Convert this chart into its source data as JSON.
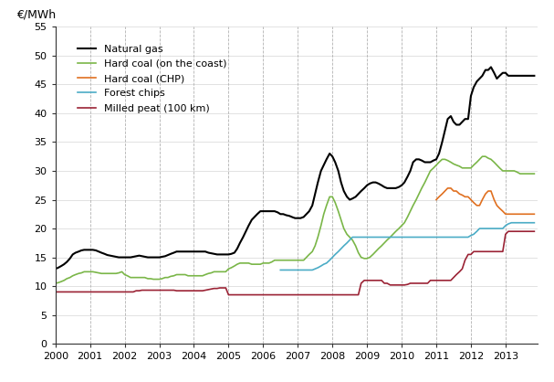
{
  "title": "",
  "ylabel": "€/MWh",
  "ylim": [
    0,
    55
  ],
  "yticks": [
    0,
    5,
    10,
    15,
    20,
    25,
    30,
    35,
    40,
    45,
    50,
    55
  ],
  "xlim_start": 2000.0,
  "xlim_end": 2013.92,
  "xtick_years": [
    2000,
    2001,
    2002,
    2003,
    2004,
    2005,
    2006,
    2007,
    2008,
    2009,
    2010,
    2011,
    2012,
    2013
  ],
  "background_color": "#ffffff",
  "grid_color": "#aaaaaa",
  "series": {
    "natural_gas": {
      "label": "Natural gas",
      "color": "#000000",
      "linewidth": 1.5
    },
    "hard_coal_coast": {
      "label": "Hard coal (on the coast)",
      "color": "#7ab648",
      "linewidth": 1.2
    },
    "hard_coal_chp": {
      "label": "Hard coal (CHP)",
      "color": "#e07020",
      "linewidth": 1.2
    },
    "forest_chips": {
      "label": "Forest chips",
      "color": "#4bacc6",
      "linewidth": 1.2
    },
    "milled_peat": {
      "label": "Milled peat (100 km)",
      "color": "#9b2335",
      "linewidth": 1.2
    }
  },
  "natural_gas_x": [
    2000.0,
    2000.08,
    2000.17,
    2000.25,
    2000.33,
    2000.42,
    2000.5,
    2000.58,
    2000.67,
    2000.75,
    2000.83,
    2000.92,
    2001.0,
    2001.08,
    2001.17,
    2001.25,
    2001.33,
    2001.42,
    2001.5,
    2001.58,
    2001.67,
    2001.75,
    2001.83,
    2001.92,
    2002.0,
    2002.08,
    2002.17,
    2002.25,
    2002.33,
    2002.42,
    2002.5,
    2002.58,
    2002.67,
    2002.75,
    2002.83,
    2002.92,
    2003.0,
    2003.08,
    2003.17,
    2003.25,
    2003.33,
    2003.42,
    2003.5,
    2003.58,
    2003.67,
    2003.75,
    2003.83,
    2003.92,
    2004.0,
    2004.08,
    2004.17,
    2004.25,
    2004.33,
    2004.42,
    2004.5,
    2004.58,
    2004.67,
    2004.75,
    2004.83,
    2004.92,
    2005.0,
    2005.08,
    2005.17,
    2005.25,
    2005.33,
    2005.42,
    2005.5,
    2005.58,
    2005.67,
    2005.75,
    2005.83,
    2005.92,
    2006.0,
    2006.08,
    2006.17,
    2006.25,
    2006.33,
    2006.42,
    2006.5,
    2006.58,
    2006.67,
    2006.75,
    2006.83,
    2006.92,
    2007.0,
    2007.08,
    2007.17,
    2007.25,
    2007.33,
    2007.42,
    2007.5,
    2007.58,
    2007.67,
    2007.75,
    2007.83,
    2007.92,
    2008.0,
    2008.08,
    2008.17,
    2008.25,
    2008.33,
    2008.42,
    2008.5,
    2008.58,
    2008.67,
    2008.75,
    2008.83,
    2008.92,
    2009.0,
    2009.08,
    2009.17,
    2009.25,
    2009.33,
    2009.42,
    2009.5,
    2009.58,
    2009.67,
    2009.75,
    2009.83,
    2009.92,
    2010.0,
    2010.08,
    2010.17,
    2010.25,
    2010.33,
    2010.42,
    2010.5,
    2010.58,
    2010.67,
    2010.75,
    2010.83,
    2010.92,
    2011.0,
    2011.08,
    2011.17,
    2011.25,
    2011.33,
    2011.42,
    2011.5,
    2011.58,
    2011.67,
    2011.75,
    2011.83,
    2011.92,
    2012.0,
    2012.08,
    2012.17,
    2012.25,
    2012.33,
    2012.42,
    2012.5,
    2012.58,
    2012.67,
    2012.75,
    2012.83,
    2012.92,
    2013.0,
    2013.08,
    2013.17,
    2013.25,
    2013.33,
    2013.42,
    2013.5,
    2013.58,
    2013.67,
    2013.75,
    2013.83
  ],
  "natural_gas_y": [
    13.0,
    13.2,
    13.5,
    13.8,
    14.2,
    14.8,
    15.5,
    15.8,
    16.0,
    16.2,
    16.3,
    16.3,
    16.3,
    16.3,
    16.2,
    16.0,
    15.8,
    15.6,
    15.4,
    15.3,
    15.2,
    15.1,
    15.0,
    15.0,
    15.0,
    15.0,
    15.0,
    15.1,
    15.2,
    15.3,
    15.2,
    15.1,
    15.0,
    15.0,
    15.0,
    15.0,
    15.0,
    15.1,
    15.2,
    15.4,
    15.6,
    15.8,
    16.0,
    16.0,
    16.0,
    16.0,
    16.0,
    16.0,
    16.0,
    16.0,
    16.0,
    16.0,
    16.0,
    15.8,
    15.7,
    15.6,
    15.5,
    15.5,
    15.5,
    15.5,
    15.5,
    15.6,
    15.8,
    16.5,
    17.5,
    18.5,
    19.5,
    20.5,
    21.5,
    22.0,
    22.5,
    23.0,
    23.0,
    23.0,
    23.0,
    23.0,
    23.0,
    22.8,
    22.5,
    22.5,
    22.3,
    22.2,
    22.0,
    21.8,
    21.8,
    21.8,
    22.0,
    22.5,
    23.0,
    24.0,
    26.0,
    28.0,
    30.0,
    31.0,
    32.0,
    33.0,
    32.5,
    31.5,
    30.0,
    28.0,
    26.5,
    25.5,
    25.0,
    25.2,
    25.5,
    26.0,
    26.5,
    27.0,
    27.5,
    27.8,
    28.0,
    28.0,
    27.8,
    27.5,
    27.2,
    27.0,
    27.0,
    27.0,
    27.0,
    27.2,
    27.5,
    28.0,
    29.0,
    30.0,
    31.5,
    32.0,
    32.0,
    31.8,
    31.5,
    31.5,
    31.5,
    31.8,
    32.0,
    33.0,
    35.0,
    37.0,
    39.0,
    39.5,
    38.5,
    38.0,
    38.0,
    38.5,
    39.0,
    39.0,
    43.0,
    44.5,
    45.5,
    46.0,
    46.5,
    47.5,
    47.5,
    48.0,
    47.0,
    46.0,
    46.5,
    47.0,
    47.0,
    46.5,
    46.5,
    46.5,
    46.5,
    46.5,
    46.5,
    46.5,
    46.5,
    46.5,
    46.5
  ],
  "hard_coal_coast_x": [
    2000.0,
    2000.08,
    2000.17,
    2000.25,
    2000.33,
    2000.42,
    2000.5,
    2000.58,
    2000.67,
    2000.75,
    2000.83,
    2000.92,
    2001.0,
    2001.08,
    2001.17,
    2001.25,
    2001.33,
    2001.42,
    2001.5,
    2001.58,
    2001.67,
    2001.75,
    2001.83,
    2001.92,
    2002.0,
    2002.08,
    2002.17,
    2002.25,
    2002.33,
    2002.42,
    2002.5,
    2002.58,
    2002.67,
    2002.75,
    2002.83,
    2002.92,
    2003.0,
    2003.08,
    2003.17,
    2003.25,
    2003.33,
    2003.42,
    2003.5,
    2003.58,
    2003.67,
    2003.75,
    2003.83,
    2003.92,
    2004.0,
    2004.08,
    2004.17,
    2004.25,
    2004.33,
    2004.42,
    2004.5,
    2004.58,
    2004.67,
    2004.75,
    2004.83,
    2004.92,
    2005.0,
    2005.08,
    2005.17,
    2005.25,
    2005.33,
    2005.42,
    2005.5,
    2005.58,
    2005.67,
    2005.75,
    2005.83,
    2005.92,
    2006.0,
    2006.08,
    2006.17,
    2006.25,
    2006.33,
    2006.42,
    2006.5,
    2006.58,
    2006.67,
    2006.75,
    2006.83,
    2006.92,
    2007.0,
    2007.08,
    2007.17,
    2007.25,
    2007.33,
    2007.42,
    2007.5,
    2007.58,
    2007.67,
    2007.75,
    2007.83,
    2007.92,
    2008.0,
    2008.08,
    2008.17,
    2008.25,
    2008.33,
    2008.42,
    2008.5,
    2008.58,
    2008.67,
    2008.75,
    2008.83,
    2008.92,
    2009.0,
    2009.08,
    2009.17,
    2009.25,
    2009.33,
    2009.42,
    2009.5,
    2009.58,
    2009.67,
    2009.75,
    2009.83,
    2009.92,
    2010.0,
    2010.08,
    2010.17,
    2010.25,
    2010.33,
    2010.42,
    2010.5,
    2010.58,
    2010.67,
    2010.75,
    2010.83,
    2010.92,
    2011.0,
    2011.08,
    2011.17,
    2011.25,
    2011.33,
    2011.42,
    2011.5,
    2011.58,
    2011.67,
    2011.75,
    2011.83,
    2011.92,
    2012.0,
    2012.08,
    2012.17,
    2012.25,
    2012.33,
    2012.42,
    2012.5,
    2012.58,
    2012.67,
    2012.75,
    2012.83,
    2012.92,
    2013.0,
    2013.08,
    2013.17,
    2013.25,
    2013.33,
    2013.42,
    2013.5,
    2013.58,
    2013.67,
    2013.75,
    2013.83
  ],
  "hard_coal_coast_y": [
    10.5,
    10.6,
    10.8,
    11.0,
    11.3,
    11.5,
    11.8,
    12.0,
    12.2,
    12.3,
    12.5,
    12.5,
    12.5,
    12.5,
    12.4,
    12.3,
    12.2,
    12.2,
    12.2,
    12.2,
    12.2,
    12.2,
    12.3,
    12.5,
    12.0,
    11.8,
    11.5,
    11.5,
    11.5,
    11.5,
    11.5,
    11.5,
    11.3,
    11.3,
    11.2,
    11.2,
    11.2,
    11.3,
    11.5,
    11.5,
    11.7,
    11.8,
    12.0,
    12.0,
    12.0,
    12.0,
    11.8,
    11.8,
    11.8,
    11.8,
    11.8,
    11.8,
    12.0,
    12.2,
    12.3,
    12.5,
    12.5,
    12.5,
    12.5,
    12.5,
    13.0,
    13.2,
    13.5,
    13.8,
    14.0,
    14.0,
    14.0,
    14.0,
    13.8,
    13.8,
    13.8,
    13.8,
    14.0,
    14.0,
    14.0,
    14.2,
    14.5,
    14.5,
    14.5,
    14.5,
    14.5,
    14.5,
    14.5,
    14.5,
    14.5,
    14.5,
    14.5,
    15.0,
    15.5,
    16.0,
    17.0,
    18.5,
    20.5,
    22.5,
    24.0,
    25.5,
    25.5,
    24.5,
    23.0,
    21.5,
    20.0,
    19.0,
    18.5,
    18.0,
    17.0,
    15.8,
    15.0,
    14.8,
    14.8,
    15.0,
    15.5,
    16.0,
    16.5,
    17.0,
    17.5,
    18.0,
    18.5,
    19.0,
    19.5,
    20.0,
    20.5,
    21.0,
    22.0,
    23.0,
    24.0,
    25.0,
    26.0,
    27.0,
    28.0,
    29.0,
    30.0,
    30.5,
    31.0,
    31.5,
    32.0,
    32.0,
    31.8,
    31.5,
    31.2,
    31.0,
    30.8,
    30.5,
    30.5,
    30.5,
    30.5,
    31.0,
    31.5,
    32.0,
    32.5,
    32.5,
    32.2,
    32.0,
    31.5,
    31.0,
    30.5,
    30.0,
    30.0,
    30.0,
    30.0,
    30.0,
    29.8,
    29.5,
    29.5,
    29.5,
    29.5,
    29.5,
    29.5
  ],
  "hard_coal_chp_x": [
    2011.0,
    2011.08,
    2011.17,
    2011.25,
    2011.33,
    2011.42,
    2011.5,
    2011.58,
    2011.67,
    2011.75,
    2011.83,
    2011.92,
    2012.0,
    2012.08,
    2012.17,
    2012.25,
    2012.33,
    2012.42,
    2012.5,
    2012.58,
    2012.67,
    2012.75,
    2012.83,
    2012.92,
    2013.0,
    2013.08,
    2013.17,
    2013.25,
    2013.33,
    2013.42,
    2013.5,
    2013.58,
    2013.67,
    2013.75,
    2013.83
  ],
  "hard_coal_chp_y": [
    25.0,
    25.5,
    26.0,
    26.5,
    27.0,
    27.0,
    26.5,
    26.5,
    26.0,
    25.8,
    25.5,
    25.5,
    25.0,
    24.5,
    24.0,
    24.0,
    25.0,
    26.0,
    26.5,
    26.5,
    25.0,
    24.0,
    23.5,
    23.0,
    22.5,
    22.5,
    22.5,
    22.5,
    22.5,
    22.5,
    22.5,
    22.5,
    22.5,
    22.5,
    22.5
  ],
  "forest_chips_x": [
    2006.5,
    2006.58,
    2006.67,
    2006.75,
    2006.83,
    2006.92,
    2007.0,
    2007.08,
    2007.17,
    2007.25,
    2007.33,
    2007.42,
    2007.5,
    2007.58,
    2007.67,
    2007.75,
    2007.83,
    2007.92,
    2008.0,
    2008.08,
    2008.17,
    2008.25,
    2008.33,
    2008.42,
    2008.5,
    2008.58,
    2008.67,
    2008.75,
    2008.83,
    2008.92,
    2009.0,
    2009.08,
    2009.17,
    2009.25,
    2009.33,
    2009.42,
    2009.5,
    2009.58,
    2009.67,
    2009.75,
    2009.83,
    2009.92,
    2010.0,
    2010.08,
    2010.17,
    2010.25,
    2010.33,
    2010.42,
    2010.5,
    2010.58,
    2010.67,
    2010.75,
    2010.83,
    2010.92,
    2011.0,
    2011.08,
    2011.17,
    2011.25,
    2011.33,
    2011.42,
    2011.5,
    2011.58,
    2011.67,
    2011.75,
    2011.83,
    2011.92,
    2012.0,
    2012.08,
    2012.17,
    2012.25,
    2012.33,
    2012.42,
    2012.5,
    2012.58,
    2012.67,
    2012.75,
    2012.83,
    2012.92,
    2013.0,
    2013.08,
    2013.17,
    2013.25,
    2013.33,
    2013.42,
    2013.5,
    2013.58,
    2013.67,
    2013.75,
    2013.83
  ],
  "forest_chips_y": [
    12.8,
    12.8,
    12.8,
    12.8,
    12.8,
    12.8,
    12.8,
    12.8,
    12.8,
    12.8,
    12.8,
    12.8,
    13.0,
    13.2,
    13.5,
    13.8,
    14.0,
    14.5,
    15.0,
    15.5,
    16.0,
    16.5,
    17.0,
    17.5,
    18.0,
    18.5,
    18.5,
    18.5,
    18.5,
    18.5,
    18.5,
    18.5,
    18.5,
    18.5,
    18.5,
    18.5,
    18.5,
    18.5,
    18.5,
    18.5,
    18.5,
    18.5,
    18.5,
    18.5,
    18.5,
    18.5,
    18.5,
    18.5,
    18.5,
    18.5,
    18.5,
    18.5,
    18.5,
    18.5,
    18.5,
    18.5,
    18.5,
    18.5,
    18.5,
    18.5,
    18.5,
    18.5,
    18.5,
    18.5,
    18.5,
    18.5,
    18.8,
    19.0,
    19.5,
    20.0,
    20.0,
    20.0,
    20.0,
    20.0,
    20.0,
    20.0,
    20.0,
    20.0,
    20.5,
    20.8,
    21.0,
    21.0,
    21.0,
    21.0,
    21.0,
    21.0,
    21.0,
    21.0,
    21.0
  ],
  "milled_peat_x": [
    2000.0,
    2000.08,
    2000.17,
    2000.25,
    2000.33,
    2000.42,
    2000.5,
    2000.58,
    2000.67,
    2000.75,
    2000.83,
    2000.92,
    2001.0,
    2001.08,
    2001.17,
    2001.25,
    2001.33,
    2001.42,
    2001.5,
    2001.58,
    2001.67,
    2001.75,
    2001.83,
    2001.92,
    2002.0,
    2002.08,
    2002.17,
    2002.25,
    2002.33,
    2002.42,
    2002.5,
    2002.58,
    2002.67,
    2002.75,
    2002.83,
    2002.92,
    2003.0,
    2003.08,
    2003.17,
    2003.25,
    2003.33,
    2003.42,
    2003.5,
    2003.58,
    2003.67,
    2003.75,
    2003.83,
    2003.92,
    2004.0,
    2004.08,
    2004.17,
    2004.25,
    2004.33,
    2004.42,
    2004.5,
    2004.58,
    2004.67,
    2004.75,
    2004.83,
    2004.92,
    2005.0,
    2005.08,
    2005.17,
    2005.25,
    2005.33,
    2005.42,
    2005.5,
    2005.58,
    2005.67,
    2005.75,
    2005.83,
    2005.92,
    2006.0,
    2006.08,
    2006.17,
    2006.25,
    2006.33,
    2006.42,
    2006.5,
    2006.58,
    2006.67,
    2006.75,
    2006.83,
    2006.92,
    2007.0,
    2007.08,
    2007.17,
    2007.25,
    2007.33,
    2007.42,
    2007.5,
    2007.58,
    2007.67,
    2007.75,
    2007.83,
    2007.92,
    2008.0,
    2008.08,
    2008.17,
    2008.25,
    2008.33,
    2008.42,
    2008.5,
    2008.58,
    2008.67,
    2008.75,
    2008.83,
    2008.92,
    2009.0,
    2009.08,
    2009.17,
    2009.25,
    2009.33,
    2009.42,
    2009.5,
    2009.58,
    2009.67,
    2009.75,
    2009.83,
    2009.92,
    2010.0,
    2010.08,
    2010.17,
    2010.25,
    2010.33,
    2010.42,
    2010.5,
    2010.58,
    2010.67,
    2010.75,
    2010.83,
    2010.92,
    2011.0,
    2011.08,
    2011.17,
    2011.25,
    2011.33,
    2011.42,
    2011.5,
    2011.58,
    2011.67,
    2011.75,
    2011.83,
    2011.92,
    2012.0,
    2012.08,
    2012.17,
    2012.25,
    2012.33,
    2012.42,
    2012.5,
    2012.58,
    2012.67,
    2012.75,
    2012.83,
    2012.92,
    2013.0,
    2013.08,
    2013.17,
    2013.25,
    2013.33,
    2013.42,
    2013.5,
    2013.58,
    2013.67,
    2013.75,
    2013.83
  ],
  "milled_peat_y": [
    9.0,
    9.0,
    9.0,
    9.0,
    9.0,
    9.0,
    9.0,
    9.0,
    9.0,
    9.0,
    9.0,
    9.0,
    9.0,
    9.0,
    9.0,
    9.0,
    9.0,
    9.0,
    9.0,
    9.0,
    9.0,
    9.0,
    9.0,
    9.0,
    9.0,
    9.0,
    9.0,
    9.0,
    9.2,
    9.2,
    9.3,
    9.3,
    9.3,
    9.3,
    9.3,
    9.3,
    9.3,
    9.3,
    9.3,
    9.3,
    9.3,
    9.3,
    9.2,
    9.2,
    9.2,
    9.2,
    9.2,
    9.2,
    9.2,
    9.2,
    9.2,
    9.2,
    9.3,
    9.4,
    9.5,
    9.6,
    9.6,
    9.7,
    9.7,
    9.7,
    8.5,
    8.5,
    8.5,
    8.5,
    8.5,
    8.5,
    8.5,
    8.5,
    8.5,
    8.5,
    8.5,
    8.5,
    8.5,
    8.5,
    8.5,
    8.5,
    8.5,
    8.5,
    8.5,
    8.5,
    8.5,
    8.5,
    8.5,
    8.5,
    8.5,
    8.5,
    8.5,
    8.5,
    8.5,
    8.5,
    8.5,
    8.5,
    8.5,
    8.5,
    8.5,
    8.5,
    8.5,
    8.5,
    8.5,
    8.5,
    8.5,
    8.5,
    8.5,
    8.5,
    8.5,
    8.5,
    10.5,
    11.0,
    11.0,
    11.0,
    11.0,
    11.0,
    11.0,
    11.0,
    10.5,
    10.5,
    10.2,
    10.2,
    10.2,
    10.2,
    10.2,
    10.2,
    10.3,
    10.5,
    10.5,
    10.5,
    10.5,
    10.5,
    10.5,
    10.5,
    11.0,
    11.0,
    11.0,
    11.0,
    11.0,
    11.0,
    11.0,
    11.0,
    11.5,
    12.0,
    12.5,
    13.0,
    14.5,
    15.5,
    15.5,
    16.0,
    16.0,
    16.0,
    16.0,
    16.0,
    16.0,
    16.0,
    16.0,
    16.0,
    16.0,
    16.0,
    19.0,
    19.5,
    19.5,
    19.5,
    19.5,
    19.5,
    19.5,
    19.5,
    19.5,
    19.5,
    19.5
  ]
}
